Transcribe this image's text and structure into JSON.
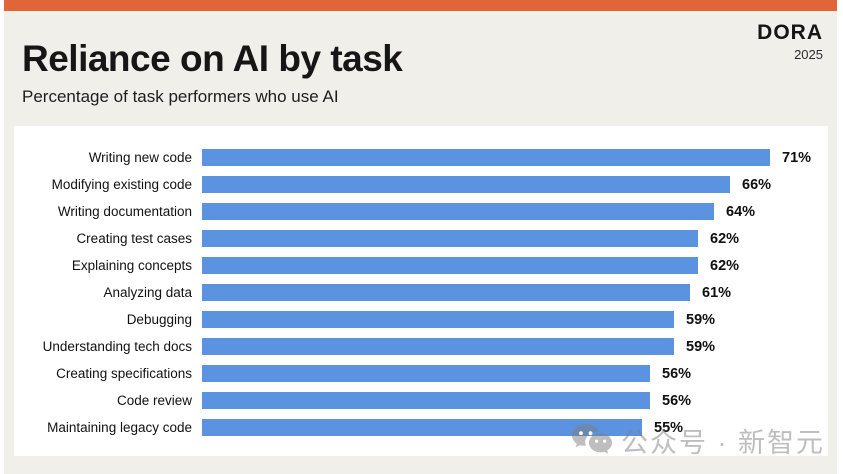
{
  "header": {
    "title": "Reliance on AI by task",
    "subtitle": "Percentage of task performers who use AI",
    "brand": "DORA",
    "year": "2025"
  },
  "chart_data": {
    "type": "bar",
    "orientation": "horizontal",
    "title": "Reliance on AI by task",
    "subtitle": "Percentage of task performers who use AI",
    "categories": [
      "Writing new code",
      "Modifying existing code",
      "Writing documentation",
      "Creating test cases",
      "Explaining concepts",
      "Analyzing data",
      "Debugging",
      "Understanding tech docs",
      "Creating specifications",
      "Code review",
      "Maintaining legacy code"
    ],
    "values": [
      71,
      66,
      64,
      62,
      62,
      61,
      59,
      59,
      56,
      56,
      55
    ],
    "value_suffix": "%",
    "xlim": [
      0,
      75
    ],
    "grid": false,
    "legend": false,
    "bar_color": "#5b93e1"
  },
  "watermark": {
    "icon": "wechat-icon",
    "text": "公众号 · 新智元"
  },
  "colors": {
    "accent": "#e0663a",
    "background": "#f0efe9",
    "card": "#ffffff",
    "bar": "#5b93e1",
    "text": "#161616",
    "watermark": "rgba(125,125,125,0.5)"
  }
}
